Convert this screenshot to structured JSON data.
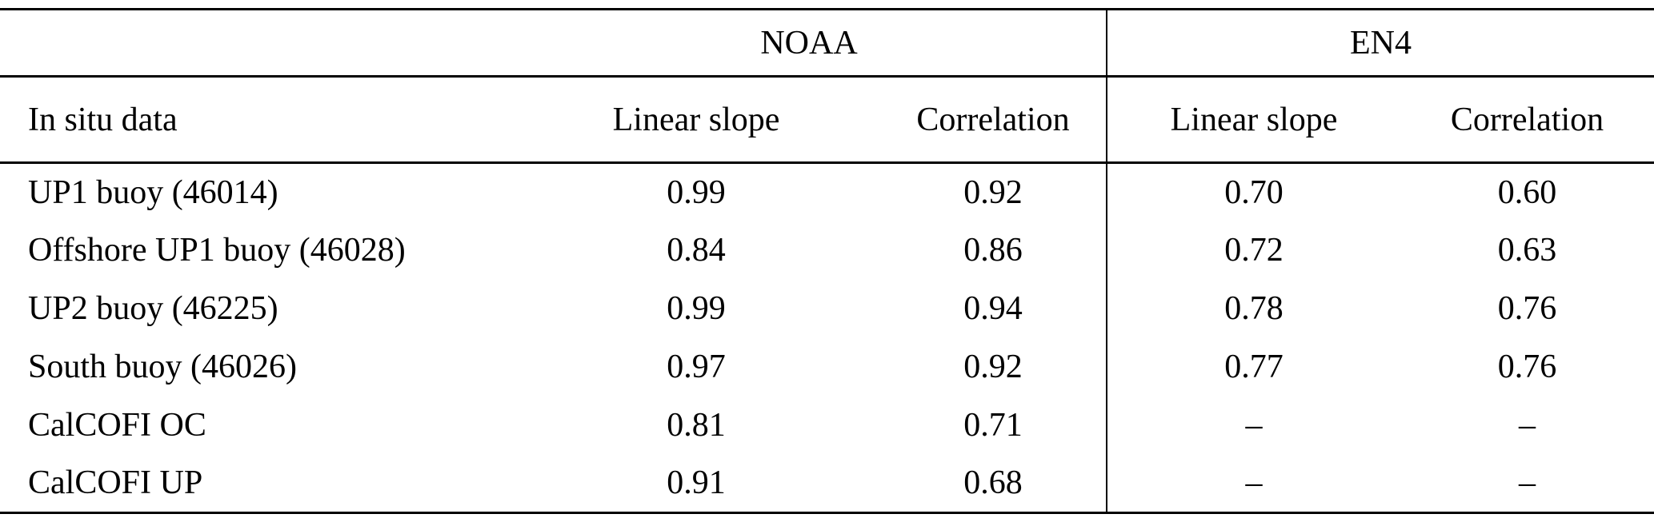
{
  "table": {
    "group_headers": [
      {
        "label": "NOAA"
      },
      {
        "label": "EN4"
      }
    ],
    "columns": [
      "In situ data",
      "Linear slope",
      "Correlation",
      "Linear slope",
      "Correlation"
    ],
    "rows": [
      {
        "label": "UP1 buoy (46014)",
        "values": [
          "0.99",
          "0.92",
          "0.70",
          "0.60"
        ]
      },
      {
        "label": "Offshore UP1 buoy (46028)",
        "values": [
          "0.84",
          "0.86",
          "0.72",
          "0.63"
        ]
      },
      {
        "label": "UP2 buoy (46225)",
        "values": [
          "0.99",
          "0.94",
          "0.78",
          "0.76"
        ]
      },
      {
        "label": "South buoy (46026)",
        "values": [
          "0.97",
          "0.92",
          "0.77",
          "0.76"
        ]
      },
      {
        "label": "CalCOFI OC",
        "values": [
          "0.81",
          "0.71",
          "–",
          "–"
        ]
      },
      {
        "label": "CalCOFI UP",
        "values": [
          "0.91",
          "0.68",
          "–",
          "–"
        ]
      }
    ]
  },
  "chart_data": {
    "type": "table",
    "title": "",
    "column_groups": [
      "",
      "NOAA",
      "NOAA",
      "EN4",
      "EN4"
    ],
    "columns": [
      "In situ data",
      "Linear slope",
      "Correlation",
      "Linear slope",
      "Correlation"
    ],
    "rows": [
      [
        "UP1 buoy (46014)",
        0.99,
        0.92,
        0.7,
        0.6
      ],
      [
        "Offshore UP1 buoy (46028)",
        0.84,
        0.86,
        0.72,
        0.63
      ],
      [
        "UP2 buoy (46225)",
        0.99,
        0.94,
        0.78,
        0.76
      ],
      [
        "South buoy (46026)",
        0.97,
        0.92,
        0.77,
        0.76
      ],
      [
        "CalCOFI OC",
        0.81,
        0.71,
        null,
        null
      ],
      [
        "CalCOFI UP",
        0.91,
        0.68,
        null,
        null
      ]
    ]
  },
  "colors": {
    "text": "#000000",
    "background": "#ffffff",
    "rule": "#000000"
  }
}
